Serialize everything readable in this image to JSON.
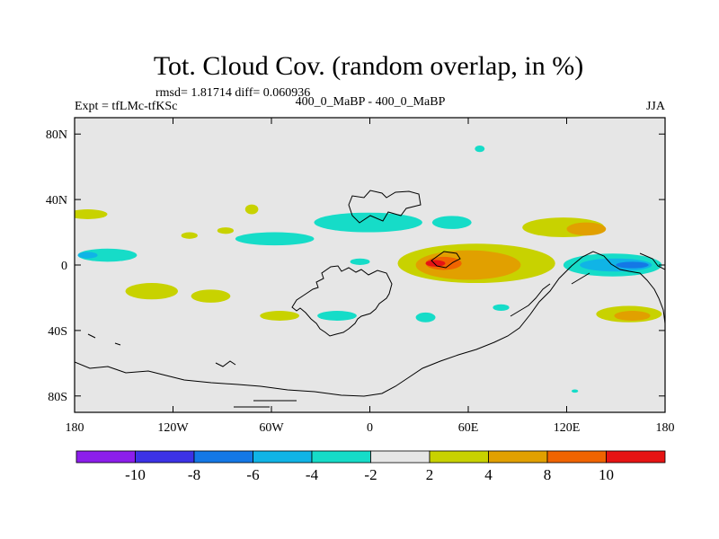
{
  "chart_data": {
    "type": "heatmap",
    "title": "Tot. Cloud Cov. (random overlap, in %)",
    "stats_line": "rmsd= 1.81714 diff= 0.060936",
    "left_label": "Expt = tfLMc-tfKSc",
    "center_label": "400_0_MaBP - 400_0_MaBP",
    "right_label": "JJA",
    "xlim": [
      -180,
      180
    ],
    "ylim": [
      -90,
      90
    ],
    "x_ticks": [
      {
        "value": -180,
        "label": "180"
      },
      {
        "value": -120,
        "label": "120W"
      },
      {
        "value": -60,
        "label": "60W"
      },
      {
        "value": 0,
        "label": "0"
      },
      {
        "value": 60,
        "label": "60E"
      },
      {
        "value": 120,
        "label": "120E"
      },
      {
        "value": 180,
        "label": "180"
      }
    ],
    "y_ticks": [
      {
        "value": 80,
        "label": "80N"
      },
      {
        "value": 40,
        "label": "40N"
      },
      {
        "value": 0,
        "label": "0"
      },
      {
        "value": -40,
        "label": "40S"
      },
      {
        "value": -80,
        "label": "80S"
      }
    ],
    "colorbar": {
      "colors": [
        "#8c1eeb",
        "#3c32e6",
        "#1478e6",
        "#10b4e6",
        "#16dcc8",
        "#e6e6e6",
        "#c8d200",
        "#e1a000",
        "#f06400",
        "#e61414"
      ],
      "labels": [
        "-10",
        "-8",
        "-6",
        "-4",
        "-2",
        "2",
        "4",
        "8",
        "10"
      ]
    },
    "fields": [
      {
        "level": "2 to 4",
        "color": "#c8d200",
        "lon": -172,
        "lat": 31,
        "rx": 12,
        "ry": 3
      },
      {
        "level": "2 to 4",
        "color": "#c8d200",
        "lon": -72,
        "lat": 34,
        "rx": 4,
        "ry": 3
      },
      {
        "level": "2 to 4",
        "color": "#c8d200",
        "lon": -88,
        "lat": 21,
        "rx": 5,
        "ry": 2
      },
      {
        "level": "2 to 4",
        "color": "#c8d200",
        "lon": -110,
        "lat": 18,
        "rx": 5,
        "ry": 2
      },
      {
        "level": "2 to 4",
        "color": "#c8d200",
        "lon": -133,
        "lat": -16,
        "rx": 16,
        "ry": 5
      },
      {
        "level": "2 to 4",
        "color": "#c8d200",
        "lon": -97,
        "lat": -19,
        "rx": 12,
        "ry": 4
      },
      {
        "level": "2 to 4",
        "color": "#c8d200",
        "lon": -55,
        "lat": -31,
        "rx": 12,
        "ry": 3
      },
      {
        "level": "2 to 4",
        "color": "#c8d200",
        "lon": 65,
        "lat": 1,
        "rx": 48,
        "ry": 12
      },
      {
        "level": "2 to 4",
        "color": "#c8d200",
        "lon": 118,
        "lat": 23,
        "rx": 25,
        "ry": 6
      },
      {
        "level": "2 to 4",
        "color": "#c8d200",
        "lon": 158,
        "lat": -30,
        "rx": 20,
        "ry": 5
      },
      {
        "level": "4 to 8",
        "color": "#e1a000",
        "lon": 60,
        "lat": 0,
        "rx": 32,
        "ry": 9
      },
      {
        "level": "4 to 8",
        "color": "#e1a000",
        "lon": 132,
        "lat": 22,
        "rx": 12,
        "ry": 4
      },
      {
        "level": "4 to 8",
        "color": "#e1a000",
        "lon": 160,
        "lat": -31,
        "rx": 11,
        "ry": 3
      },
      {
        "level": "8 to 10",
        "color": "#f06400",
        "lon": 45,
        "lat": 1,
        "rx": 11,
        "ry": 4
      },
      {
        "level": "above 10",
        "color": "#e61414",
        "lon": 40,
        "lat": 1,
        "rx": 6,
        "ry": 2
      },
      {
        "level": "-4 to -2",
        "color": "#16dcc8",
        "lon": -1,
        "lat": 26,
        "rx": 33,
        "ry": 6
      },
      {
        "level": "-4 to -2",
        "color": "#16dcc8",
        "lon": -58,
        "lat": 16,
        "rx": 24,
        "ry": 4
      },
      {
        "level": "-4 to -2",
        "color": "#16dcc8",
        "lon": -160,
        "lat": 6,
        "rx": 18,
        "ry": 4
      },
      {
        "level": "-4 to -2",
        "color": "#16dcc8",
        "lon": 50,
        "lat": 26,
        "rx": 12,
        "ry": 4
      },
      {
        "level": "-4 to -2",
        "color": "#16dcc8",
        "lon": 67,
        "lat": 71,
        "rx": 3,
        "ry": 2
      },
      {
        "level": "-4 to -2",
        "color": "#16dcc8",
        "lon": -20,
        "lat": -31,
        "rx": 12,
        "ry": 3
      },
      {
        "level": "-4 to -2",
        "color": "#16dcc8",
        "lon": 34,
        "lat": -32,
        "rx": 6,
        "ry": 3
      },
      {
        "level": "-4 to -2",
        "color": "#16dcc8",
        "lon": 80,
        "lat": -26,
        "rx": 5,
        "ry": 2
      },
      {
        "level": "-4 to -2",
        "color": "#16dcc8",
        "lon": -6,
        "lat": 2,
        "rx": 6,
        "ry": 2
      },
      {
        "level": "-4 to -2",
        "color": "#16dcc8",
        "lon": 148,
        "lat": 0,
        "rx": 30,
        "ry": 7
      },
      {
        "level": "-4 to -2",
        "color": "#16dcc8",
        "lon": 125,
        "lat": -77,
        "rx": 2,
        "ry": 1
      },
      {
        "level": "-6 to -4",
        "color": "#10b4e6",
        "lon": 150,
        "lat": 0,
        "rx": 22,
        "ry": 4
      },
      {
        "level": "-6 to -4",
        "color": "#10b4e6",
        "lon": -172,
        "lat": 6,
        "rx": 6,
        "ry": 2
      },
      {
        "level": "-8 to -6",
        "color": "#1478e6",
        "lon": 160,
        "lat": 0,
        "rx": 10,
        "ry": 2
      }
    ]
  }
}
